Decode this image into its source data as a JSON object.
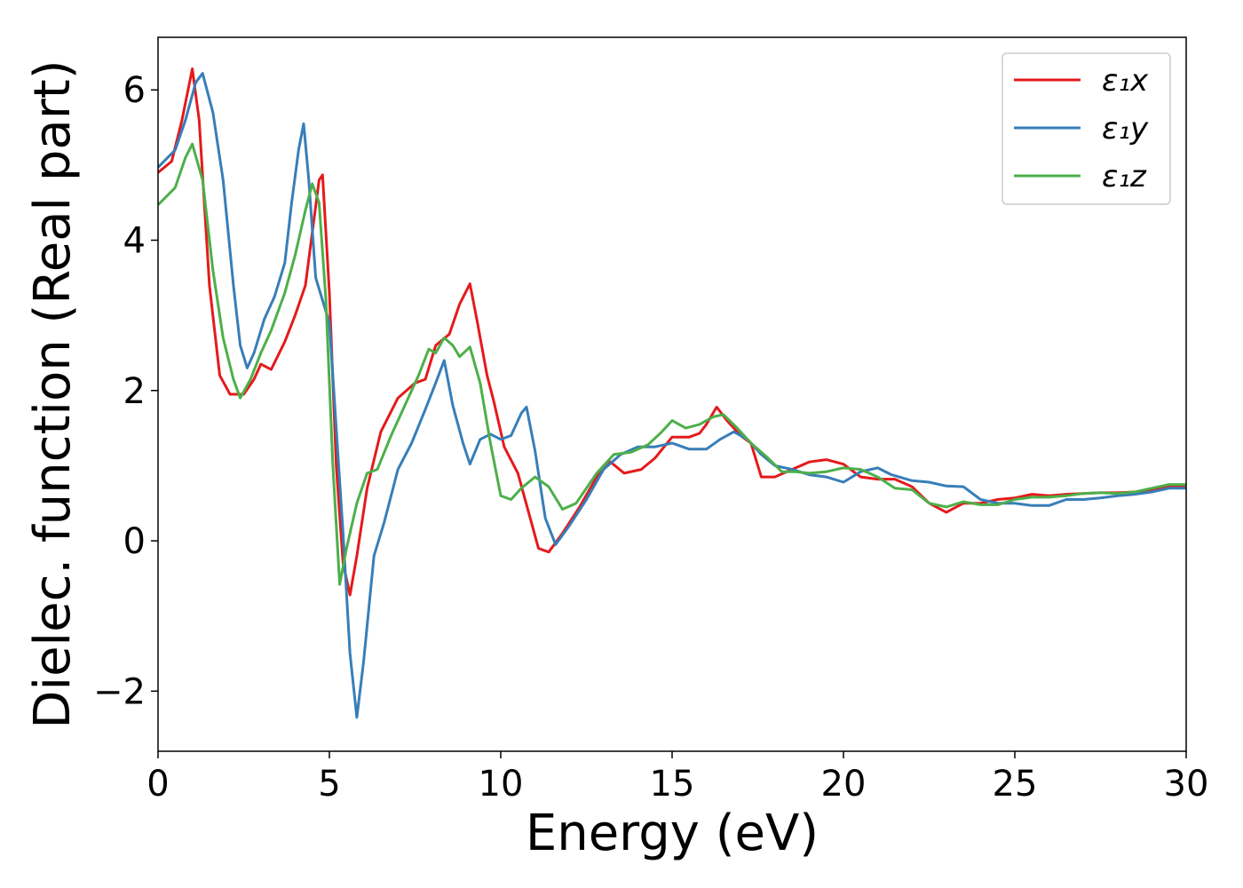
{
  "chart_data": {
    "type": "line",
    "title": "",
    "xlabel": "Energy (eV)",
    "ylabel": "Dielec. function (Real part)",
    "xlim": [
      0,
      30
    ],
    "ylim": [
      -2.8,
      6.7
    ],
    "xticks": [
      0,
      5,
      10,
      15,
      20,
      25,
      30
    ],
    "xtick_labels": [
      "0",
      "5",
      "10",
      "15",
      "20",
      "25",
      "30"
    ],
    "yticks": [
      -2,
      0,
      2,
      4,
      6
    ],
    "ytick_labels": [
      "−2",
      "0",
      "2",
      "4",
      "6"
    ],
    "grid": false,
    "legend_position": "top-right",
    "series": [
      {
        "name": "ε₁x",
        "color": "#e41a1c",
        "points": [
          [
            0,
            4.9
          ],
          [
            0.4,
            5.05
          ],
          [
            0.7,
            5.6
          ],
          [
            1.0,
            6.28
          ],
          [
            1.2,
            5.6
          ],
          [
            1.5,
            3.4
          ],
          [
            1.8,
            2.2
          ],
          [
            2.1,
            1.95
          ],
          [
            2.5,
            1.95
          ],
          [
            2.8,
            2.15
          ],
          [
            3.0,
            2.35
          ],
          [
            3.3,
            2.28
          ],
          [
            3.7,
            2.65
          ],
          [
            4.0,
            3.0
          ],
          [
            4.3,
            3.4
          ],
          [
            4.5,
            4.1
          ],
          [
            4.7,
            4.8
          ],
          [
            4.8,
            4.87
          ],
          [
            5.0,
            3.3
          ],
          [
            5.2,
            1.0
          ],
          [
            5.4,
            -0.3
          ],
          [
            5.6,
            -0.72
          ],
          [
            5.8,
            -0.2
          ],
          [
            6.1,
            0.7
          ],
          [
            6.5,
            1.45
          ],
          [
            7.0,
            1.9
          ],
          [
            7.5,
            2.1
          ],
          [
            7.8,
            2.15
          ],
          [
            8.1,
            2.6
          ],
          [
            8.5,
            2.75
          ],
          [
            8.8,
            3.15
          ],
          [
            9.1,
            3.42
          ],
          [
            9.3,
            2.95
          ],
          [
            9.6,
            2.2
          ],
          [
            9.8,
            1.85
          ],
          [
            10.1,
            1.25
          ],
          [
            10.5,
            0.9
          ],
          [
            10.8,
            0.4
          ],
          [
            11.1,
            -0.1
          ],
          [
            11.4,
            -0.15
          ],
          [
            11.8,
            0.1
          ],
          [
            12.3,
            0.45
          ],
          [
            12.8,
            0.85
          ],
          [
            13.2,
            1.05
          ],
          [
            13.6,
            0.9
          ],
          [
            14.1,
            0.95
          ],
          [
            14.5,
            1.1
          ],
          [
            15.0,
            1.38
          ],
          [
            15.5,
            1.38
          ],
          [
            15.8,
            1.43
          ],
          [
            16.0,
            1.55
          ],
          [
            16.3,
            1.78
          ],
          [
            16.6,
            1.6
          ],
          [
            17.0,
            1.4
          ],
          [
            17.3,
            1.3
          ],
          [
            17.6,
            0.85
          ],
          [
            18.0,
            0.85
          ],
          [
            18.5,
            0.95
          ],
          [
            19.0,
            1.05
          ],
          [
            19.5,
            1.08
          ],
          [
            20.0,
            1.02
          ],
          [
            20.5,
            0.85
          ],
          [
            21.0,
            0.82
          ],
          [
            21.5,
            0.82
          ],
          [
            22.0,
            0.72
          ],
          [
            22.5,
            0.5
          ],
          [
            23.0,
            0.38
          ],
          [
            23.5,
            0.5
          ],
          [
            24.0,
            0.5
          ],
          [
            24.5,
            0.55
          ],
          [
            25.0,
            0.57
          ],
          [
            25.5,
            0.62
          ],
          [
            26.0,
            0.6
          ],
          [
            26.5,
            0.62
          ],
          [
            27.0,
            0.63
          ],
          [
            27.5,
            0.64
          ],
          [
            28.0,
            0.64
          ],
          [
            28.5,
            0.65
          ],
          [
            29.0,
            0.68
          ],
          [
            29.5,
            0.72
          ],
          [
            30.0,
            0.72
          ]
        ]
      },
      {
        "name": "ε₁y",
        "color": "#377eb8",
        "points": [
          [
            0,
            4.97
          ],
          [
            0.5,
            5.2
          ],
          [
            0.8,
            5.6
          ],
          [
            1.1,
            6.1
          ],
          [
            1.3,
            6.22
          ],
          [
            1.6,
            5.7
          ],
          [
            1.9,
            4.8
          ],
          [
            2.2,
            3.4
          ],
          [
            2.4,
            2.6
          ],
          [
            2.6,
            2.3
          ],
          [
            2.8,
            2.5
          ],
          [
            3.1,
            2.95
          ],
          [
            3.4,
            3.25
          ],
          [
            3.7,
            3.7
          ],
          [
            3.9,
            4.5
          ],
          [
            4.1,
            5.2
          ],
          [
            4.25,
            5.55
          ],
          [
            4.4,
            4.8
          ],
          [
            4.6,
            3.5
          ],
          [
            4.8,
            3.2
          ],
          [
            5.0,
            2.9
          ],
          [
            5.2,
            1.5
          ],
          [
            5.4,
            0.1
          ],
          [
            5.6,
            -1.5
          ],
          [
            5.8,
            -2.35
          ],
          [
            6.0,
            -1.6
          ],
          [
            6.3,
            -0.2
          ],
          [
            6.6,
            0.25
          ],
          [
            7.0,
            0.95
          ],
          [
            7.4,
            1.3
          ],
          [
            7.8,
            1.75
          ],
          [
            8.1,
            2.1
          ],
          [
            8.35,
            2.4
          ],
          [
            8.6,
            1.8
          ],
          [
            8.9,
            1.3
          ],
          [
            9.1,
            1.02
          ],
          [
            9.4,
            1.35
          ],
          [
            9.7,
            1.42
          ],
          [
            10.0,
            1.35
          ],
          [
            10.3,
            1.4
          ],
          [
            10.6,
            1.7
          ],
          [
            10.75,
            1.78
          ],
          [
            11.0,
            1.2
          ],
          [
            11.3,
            0.3
          ],
          [
            11.6,
            -0.05
          ],
          [
            12.0,
            0.2
          ],
          [
            12.5,
            0.55
          ],
          [
            13.0,
            0.95
          ],
          [
            13.5,
            1.15
          ],
          [
            14.0,
            1.25
          ],
          [
            14.5,
            1.25
          ],
          [
            15.0,
            1.3
          ],
          [
            15.5,
            1.22
          ],
          [
            16.0,
            1.22
          ],
          [
            16.4,
            1.35
          ],
          [
            16.8,
            1.45
          ],
          [
            17.2,
            1.35
          ],
          [
            17.6,
            1.15
          ],
          [
            18.0,
            1.0
          ],
          [
            18.5,
            0.95
          ],
          [
            19.0,
            0.88
          ],
          [
            19.5,
            0.85
          ],
          [
            20.0,
            0.78
          ],
          [
            20.5,
            0.92
          ],
          [
            21.0,
            0.97
          ],
          [
            21.4,
            0.88
          ],
          [
            22.0,
            0.8
          ],
          [
            22.5,
            0.78
          ],
          [
            23.0,
            0.73
          ],
          [
            23.5,
            0.72
          ],
          [
            24.0,
            0.55
          ],
          [
            24.5,
            0.5
          ],
          [
            25.0,
            0.5
          ],
          [
            25.5,
            0.47
          ],
          [
            26.0,
            0.47
          ],
          [
            26.5,
            0.55
          ],
          [
            27.0,
            0.55
          ],
          [
            27.5,
            0.57
          ],
          [
            28.0,
            0.6
          ],
          [
            28.5,
            0.62
          ],
          [
            29.0,
            0.65
          ],
          [
            29.5,
            0.7
          ],
          [
            30.0,
            0.7
          ]
        ]
      },
      {
        "name": "ε₁z",
        "color": "#4daf4a",
        "points": [
          [
            0,
            4.47
          ],
          [
            0.5,
            4.7
          ],
          [
            0.8,
            5.1
          ],
          [
            1.0,
            5.28
          ],
          [
            1.3,
            4.8
          ],
          [
            1.6,
            3.6
          ],
          [
            1.9,
            2.7
          ],
          [
            2.2,
            2.15
          ],
          [
            2.4,
            1.9
          ],
          [
            2.7,
            2.15
          ],
          [
            3.0,
            2.5
          ],
          [
            3.3,
            2.8
          ],
          [
            3.7,
            3.3
          ],
          [
            4.0,
            3.8
          ],
          [
            4.3,
            4.4
          ],
          [
            4.5,
            4.75
          ],
          [
            4.7,
            4.5
          ],
          [
            4.9,
            3.2
          ],
          [
            5.1,
            1.0
          ],
          [
            5.3,
            -0.58
          ],
          [
            5.5,
            -0.1
          ],
          [
            5.8,
            0.5
          ],
          [
            6.1,
            0.9
          ],
          [
            6.4,
            0.95
          ],
          [
            6.8,
            1.4
          ],
          [
            7.2,
            1.8
          ],
          [
            7.6,
            2.2
          ],
          [
            7.9,
            2.55
          ],
          [
            8.1,
            2.5
          ],
          [
            8.35,
            2.7
          ],
          [
            8.6,
            2.6
          ],
          [
            8.8,
            2.45
          ],
          [
            9.1,
            2.58
          ],
          [
            9.4,
            2.1
          ],
          [
            9.7,
            1.3
          ],
          [
            10.0,
            0.6
          ],
          [
            10.3,
            0.55
          ],
          [
            10.6,
            0.7
          ],
          [
            11.0,
            0.85
          ],
          [
            11.4,
            0.72
          ],
          [
            11.8,
            0.42
          ],
          [
            12.2,
            0.5
          ],
          [
            12.8,
            0.9
          ],
          [
            13.3,
            1.15
          ],
          [
            13.8,
            1.18
          ],
          [
            14.3,
            1.28
          ],
          [
            14.7,
            1.45
          ],
          [
            15.0,
            1.6
          ],
          [
            15.4,
            1.5
          ],
          [
            15.8,
            1.55
          ],
          [
            16.2,
            1.65
          ],
          [
            16.5,
            1.68
          ],
          [
            16.9,
            1.5
          ],
          [
            17.3,
            1.3
          ],
          [
            17.8,
            1.1
          ],
          [
            18.2,
            0.92
          ],
          [
            18.6,
            0.92
          ],
          [
            19.0,
            0.9
          ],
          [
            19.5,
            0.92
          ],
          [
            20.0,
            0.97
          ],
          [
            20.5,
            0.95
          ],
          [
            21.0,
            0.85
          ],
          [
            21.5,
            0.7
          ],
          [
            22.0,
            0.68
          ],
          [
            22.5,
            0.5
          ],
          [
            23.0,
            0.45
          ],
          [
            23.5,
            0.52
          ],
          [
            24.0,
            0.48
          ],
          [
            24.5,
            0.48
          ],
          [
            25.0,
            0.55
          ],
          [
            25.5,
            0.58
          ],
          [
            26.0,
            0.58
          ],
          [
            26.5,
            0.6
          ],
          [
            27.0,
            0.63
          ],
          [
            27.5,
            0.64
          ],
          [
            28.0,
            0.63
          ],
          [
            28.5,
            0.65
          ],
          [
            29.0,
            0.7
          ],
          [
            29.5,
            0.75
          ],
          [
            30.0,
            0.75
          ]
        ]
      }
    ]
  }
}
